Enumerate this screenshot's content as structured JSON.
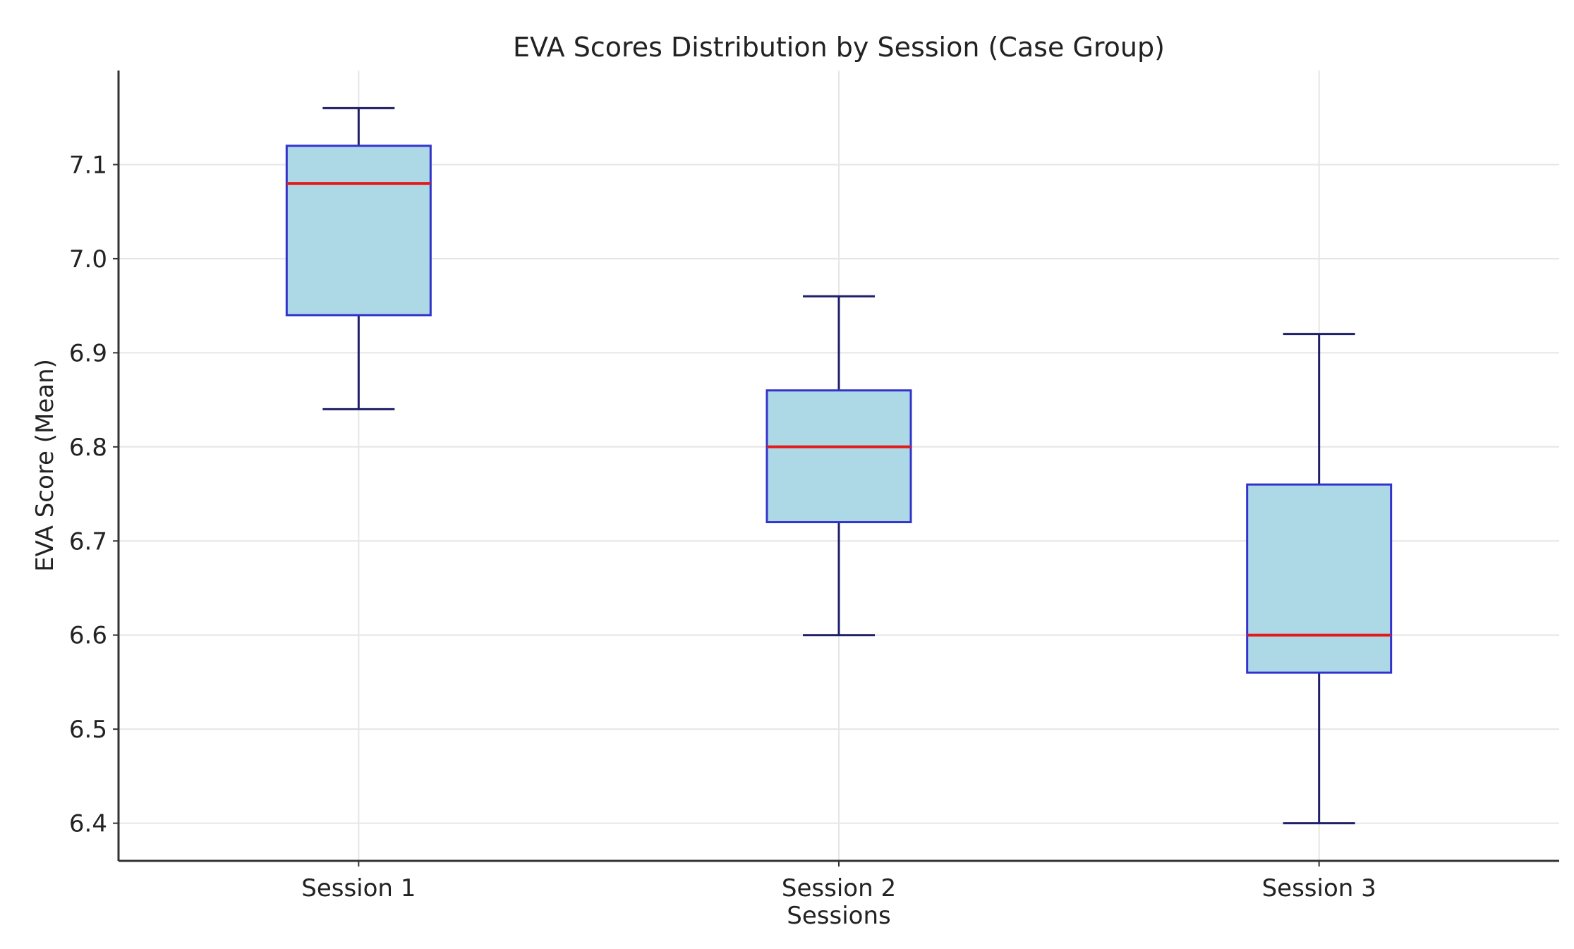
{
  "chart_data": {
    "type": "box",
    "title": "EVA Scores Distribution by Session (Case Group)",
    "xlabel": "Sessions",
    "ylabel": "EVA Score (Mean)",
    "categories": [
      "Session 1",
      "Session 2",
      "Session 3"
    ],
    "ylim": [
      6.36,
      7.2
    ],
    "yticks": [
      6.4,
      6.5,
      6.6,
      6.7,
      6.8,
      6.9,
      7.0,
      7.1
    ],
    "ytick_labels": [
      "6.4",
      "6.5",
      "6.6",
      "6.7",
      "6.8",
      "6.9",
      "7.0",
      "7.1"
    ],
    "grid": true,
    "boxes": [
      {
        "name": "Session 1",
        "whisker_low": 6.84,
        "q1": 6.94,
        "median": 7.08,
        "q3": 7.12,
        "whisker_high": 7.16
      },
      {
        "name": "Session 2",
        "whisker_low": 6.6,
        "q1": 6.72,
        "median": 6.8,
        "q3": 6.86,
        "whisker_high": 6.96
      },
      {
        "name": "Session 3",
        "whisker_low": 6.4,
        "q1": 6.56,
        "median": 6.6,
        "q3": 6.76,
        "whisker_high": 6.92
      }
    ],
    "colors": {
      "box_fill": "#add8e6",
      "box_edge": "#3333cc",
      "median": "#e31a1c",
      "whisker": "#1f1f6b"
    }
  }
}
